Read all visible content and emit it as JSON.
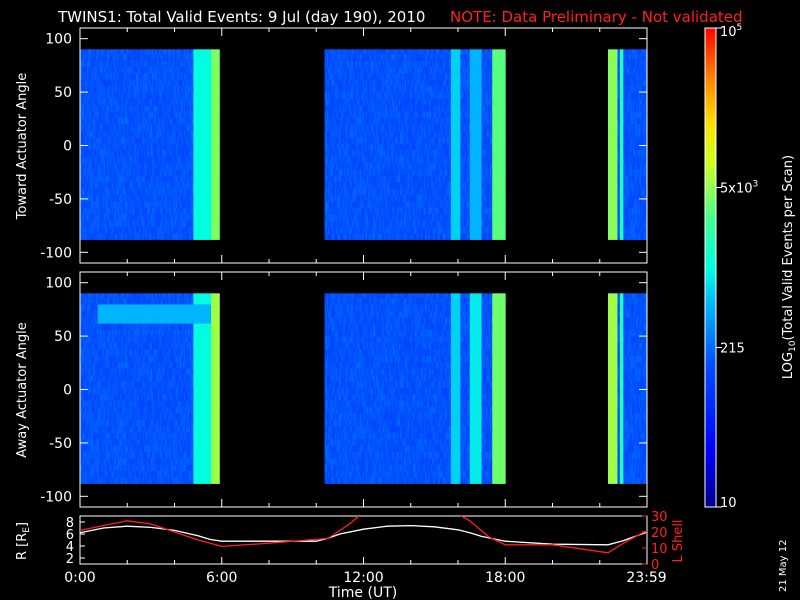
{
  "title": "TWINS1: Total Valid Events:  9 Jul (day 190), 2010",
  "note": "NOTE: Data Preliminary - Not validated",
  "date_stamp": "21 May 12",
  "colors": {
    "background": "#000000",
    "axes": "#ffffff",
    "note": "#ff2020",
    "lshell": "#ff2020",
    "radius": "#ffffff"
  },
  "chart_data": [
    {
      "type": "heatmap",
      "ylabel": "Toward Actuator Angle",
      "ylim": [
        -110,
        110
      ],
      "yticks": [
        -100,
        -50,
        0,
        50,
        100
      ],
      "xlim_hours": [
        0,
        24
      ],
      "data_extent": [
        -88,
        90
      ],
      "blocks": [
        {
          "start": 0.0,
          "end": 5.9,
          "base_level": 0.3
        },
        {
          "start": 10.35,
          "end": 18.0,
          "base_level": 0.3
        },
        {
          "start": 22.35,
          "end": 24.0,
          "base_level": 0.3
        }
      ],
      "bright_bands": [
        {
          "start": 4.8,
          "end": 5.55,
          "level": 0.5
        },
        {
          "start": 5.55,
          "end": 5.9,
          "level": 0.65
        },
        {
          "start": 15.7,
          "end": 16.1,
          "level": 0.45
        },
        {
          "start": 16.5,
          "end": 17.0,
          "level": 0.42
        },
        {
          "start": 17.45,
          "end": 18.0,
          "level": 0.62
        },
        {
          "start": 22.35,
          "end": 22.75,
          "level": 0.66
        },
        {
          "start": 22.85,
          "end": 23.0,
          "level": 0.55
        }
      ]
    },
    {
      "type": "heatmap",
      "ylabel": "Away Actuator Angle",
      "ylim": [
        -110,
        110
      ],
      "yticks": [
        -100,
        -50,
        0,
        50,
        100
      ],
      "xlim_hours": [
        0,
        24
      ],
      "data_extent": [
        -88,
        90
      ],
      "blocks": [
        {
          "start": 0.0,
          "end": 5.9,
          "base_level": 0.3
        },
        {
          "start": 10.35,
          "end": 18.0,
          "base_level": 0.3
        },
        {
          "start": 22.35,
          "end": 24.0,
          "base_level": 0.3
        }
      ],
      "bright_bands": [
        {
          "start": 4.8,
          "end": 5.55,
          "level": 0.5
        },
        {
          "start": 5.55,
          "end": 5.9,
          "level": 0.68
        },
        {
          "start": 15.7,
          "end": 16.1,
          "level": 0.45
        },
        {
          "start": 16.5,
          "end": 17.0,
          "level": 0.48
        },
        {
          "start": 17.45,
          "end": 18.0,
          "level": 0.64
        },
        {
          "start": 22.35,
          "end": 22.75,
          "level": 0.68
        },
        {
          "start": 22.85,
          "end": 23.0,
          "level": 0.55
        }
      ],
      "arc": {
        "start": 0.75,
        "end": 5.5,
        "angle_high": 77,
        "angle_low": 67,
        "level": 0.42
      }
    },
    {
      "type": "line",
      "ylabel_left": "R [R",
      "ylabel_left_sub": "E",
      "ylabel_left_end": "]",
      "ylabel_right": "L Shell",
      "xlabel": "Time (UT)",
      "xticks": [
        "0:00",
        "6:00",
        "12:00",
        "18:00",
        "23:59"
      ],
      "xtick_hours": [
        0,
        6,
        12,
        18,
        23.98
      ],
      "ylim_left": [
        1,
        9
      ],
      "yticks_left": [
        "2",
        "4",
        "6",
        "8"
      ],
      "ylim_right": [
        0,
        30
      ],
      "yticks_right": [
        "0",
        "10",
        "20",
        "30"
      ],
      "series": [
        {
          "axis": "left",
          "x": [
            0,
            1,
            2,
            3,
            4,
            5,
            5.5,
            6,
            8,
            10,
            10.5,
            11,
            12,
            13,
            14,
            15,
            16,
            16.5,
            17,
            18,
            20,
            22.35,
            23,
            24
          ],
          "y": [
            6.2,
            7.0,
            7.3,
            7.1,
            6.6,
            5.7,
            5.1,
            4.8,
            4.8,
            4.8,
            5.3,
            6.0,
            6.8,
            7.3,
            7.4,
            7.2,
            6.7,
            6.2,
            5.6,
            4.8,
            4.3,
            4.2,
            4.9,
            6.3
          ]
        },
        {
          "axis": "right",
          "x": [
            0,
            2,
            3,
            4,
            5,
            6,
            8,
            10.5,
            11.5,
            12,
            15.8,
            16.5,
            17.3,
            18,
            20,
            22.35,
            23,
            24
          ],
          "y": [
            21,
            27,
            25,
            20,
            15,
            11,
            13,
            16,
            26,
            33,
            33,
            27,
            17,
            12,
            12,
            7,
            13,
            21
          ]
        }
      ]
    }
  ],
  "colorbar": {
    "label": "LOG",
    "label_sub": "10",
    "label_rest": "(Total Valid Events per Scan)",
    "ticks": [
      {
        "text": "10",
        "level": 0.0
      },
      {
        "text": "215",
        "level": 0.333
      },
      {
        "text": "5x10",
        "sup": "3",
        "level": 0.667
      },
      {
        "text": "10",
        "sup": "5",
        "level": 1.0
      }
    ]
  }
}
